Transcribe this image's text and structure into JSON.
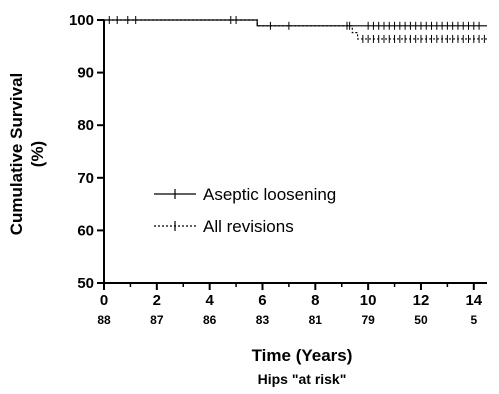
{
  "chart_data": {
    "type": "line",
    "xlabel": "Time (Years)",
    "ylabel": "Cumulative Survival (%)",
    "ylabel_lines": [
      "Cumulative Survival",
      "(%)"
    ],
    "xlim": [
      0,
      14.5
    ],
    "ylim": [
      50,
      100
    ],
    "x_ticks": [
      0,
      2,
      4,
      6,
      8,
      10,
      12,
      14
    ],
    "y_ticks": [
      50,
      60,
      70,
      80,
      90,
      100
    ],
    "grid": false,
    "legend_position": "center-left",
    "at_risk_label": "Hips \"at risk\"",
    "at_risk": {
      "x": [
        0,
        2,
        4,
        6,
        8,
        10,
        12,
        14
      ],
      "values": [
        "88",
        "87",
        "86",
        "83",
        "81",
        "79",
        "50",
        "5"
      ]
    },
    "series": [
      {
        "name": "Aseptic loosening",
        "style": "solid",
        "x": [
          0,
          5.8,
          5.8,
          14.5
        ],
        "y": [
          100,
          100,
          98.9,
          98.9
        ],
        "censor_x": [
          0.2,
          0.5,
          0.9,
          1.2,
          4.8,
          5.0,
          6.3,
          7.0,
          9.2,
          9.3,
          10.0,
          10.2,
          10.4,
          10.6,
          10.8,
          11.0,
          11.2,
          11.4,
          11.6,
          11.8,
          12.0,
          12.2,
          12.4,
          12.6,
          12.8,
          13.0,
          13.2,
          13.4,
          13.6,
          13.8,
          14.0,
          14.2
        ]
      },
      {
        "name": "All revisions",
        "style": "dashed",
        "x": [
          0,
          5.8,
          5.8,
          9.4,
          9.4,
          9.6,
          9.6,
          14.5
        ],
        "y": [
          100,
          100,
          98.9,
          98.9,
          97.6,
          97.6,
          96.4,
          96.4
        ],
        "censor_x": [
          9.8,
          10.0,
          10.2,
          10.4,
          10.6,
          10.8,
          11.0,
          11.2,
          11.4,
          11.6,
          11.8,
          12.0,
          12.2,
          12.4,
          12.6,
          12.8,
          13.0,
          13.2,
          13.4,
          13.6,
          13.8,
          14.0,
          14.2,
          14.4
        ]
      }
    ]
  }
}
